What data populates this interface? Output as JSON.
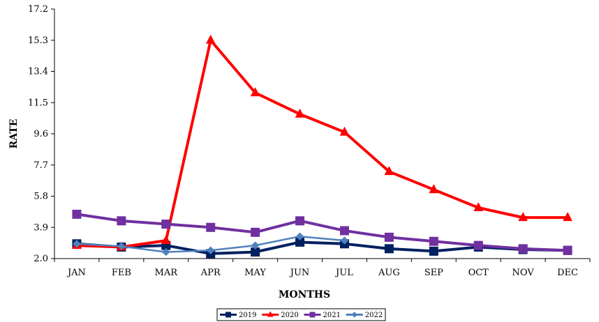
{
  "chart_data": {
    "type": "line",
    "title": "",
    "xlabel": "MONTHS",
    "ylabel": "RATE",
    "categories": [
      "JAN",
      "FEB",
      "MAR",
      "APR",
      "MAY",
      "JUN",
      "JUL",
      "AUG",
      "SEP",
      "OCT",
      "NOV",
      "DEC"
    ],
    "yticks": [
      "2.0",
      "3.9",
      "5.8",
      "7.7",
      "9.6",
      "11.5",
      "13.4",
      "15.3",
      "17.2"
    ],
    "ylim": [
      2.0,
      17.2
    ],
    "grid": false,
    "legend_position": "bottom",
    "series": [
      {
        "name": "2019",
        "color": "#002060",
        "marker": "square",
        "values": [
          2.9,
          2.7,
          2.8,
          2.3,
          2.4,
          3.0,
          2.9,
          2.6,
          2.45,
          2.7,
          2.55,
          2.5
        ]
      },
      {
        "name": "2020",
        "color": "#ff0000",
        "marker": "triangle",
        "values": [
          2.8,
          2.7,
          3.1,
          15.3,
          12.1,
          10.8,
          9.7,
          7.3,
          6.2,
          5.1,
          4.5,
          4.5
        ]
      },
      {
        "name": "2021",
        "color": "#7030a0",
        "marker": "square",
        "values": [
          4.7,
          4.3,
          4.1,
          3.9,
          3.6,
          4.3,
          3.7,
          3.3,
          3.05,
          2.8,
          2.6,
          2.5
        ]
      },
      {
        "name": "2022",
        "color": "#4f81bd",
        "marker": "diamond",
        "values": [
          2.9,
          2.75,
          2.4,
          2.5,
          2.8,
          3.35,
          3.1,
          null,
          null,
          null,
          null,
          null
        ]
      }
    ]
  }
}
